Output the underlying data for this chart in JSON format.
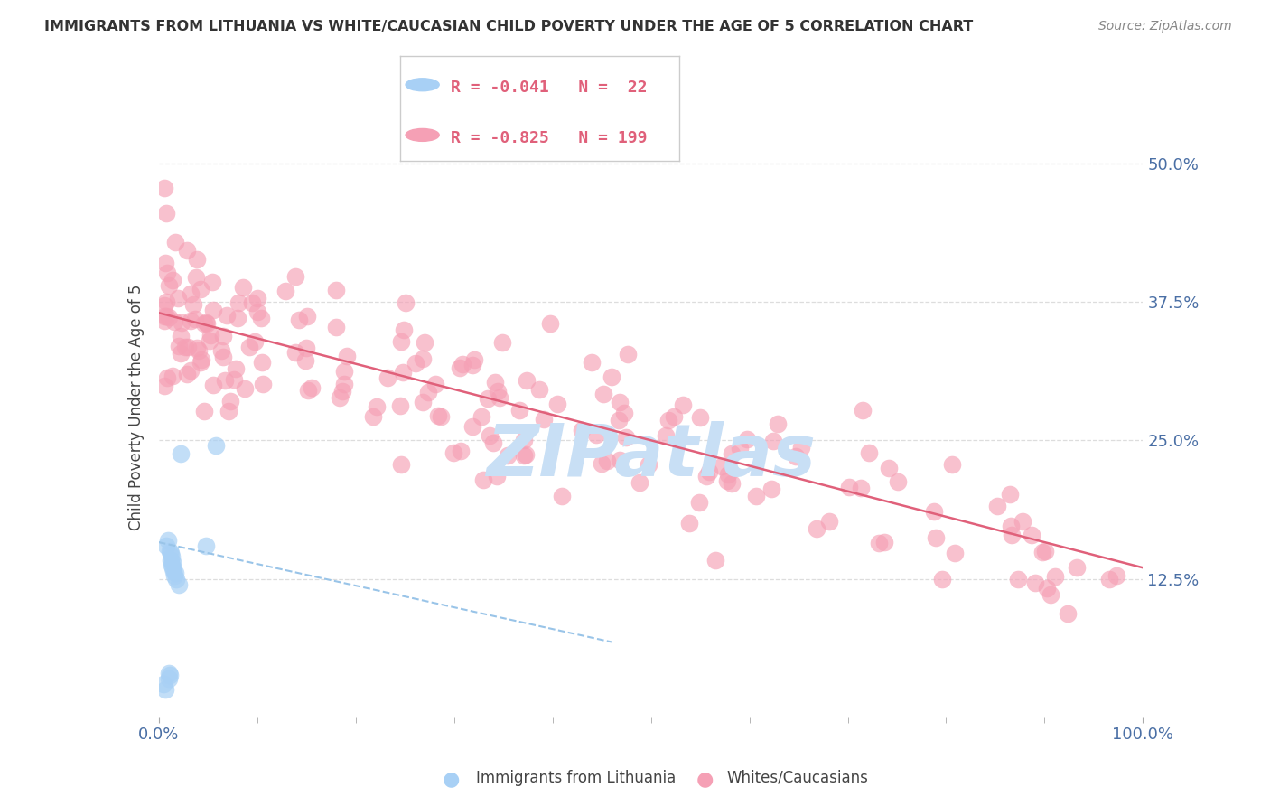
{
  "title": "IMMIGRANTS FROM LITHUANIA VS WHITE/CAUCASIAN CHILD POVERTY UNDER THE AGE OF 5 CORRELATION CHART",
  "source": "Source: ZipAtlas.com",
  "ylabel": "Child Poverty Under the Age of 5",
  "ytick_labels": [
    "12.5%",
    "25.0%",
    "37.5%",
    "50.0%"
  ],
  "ytick_values": [
    0.125,
    0.25,
    0.375,
    0.5
  ],
  "xlim": [
    0.0,
    1.0
  ],
  "ylim": [
    0.0,
    0.56
  ],
  "legend_blue_r": "-0.041",
  "legend_blue_n": "22",
  "legend_pink_r": "-0.825",
  "legend_pink_n": "199",
  "blue_color": "#a8d0f5",
  "pink_color": "#f5a0b5",
  "trendline_blue_color": "#99c4e8",
  "trendline_pink_color": "#e0607a",
  "watermark_color": "#c8dff5",
  "title_color": "#333333",
  "axis_label_color": "#4a6fa5",
  "grid_color": "#dddddd",
  "source_color": "#888888"
}
